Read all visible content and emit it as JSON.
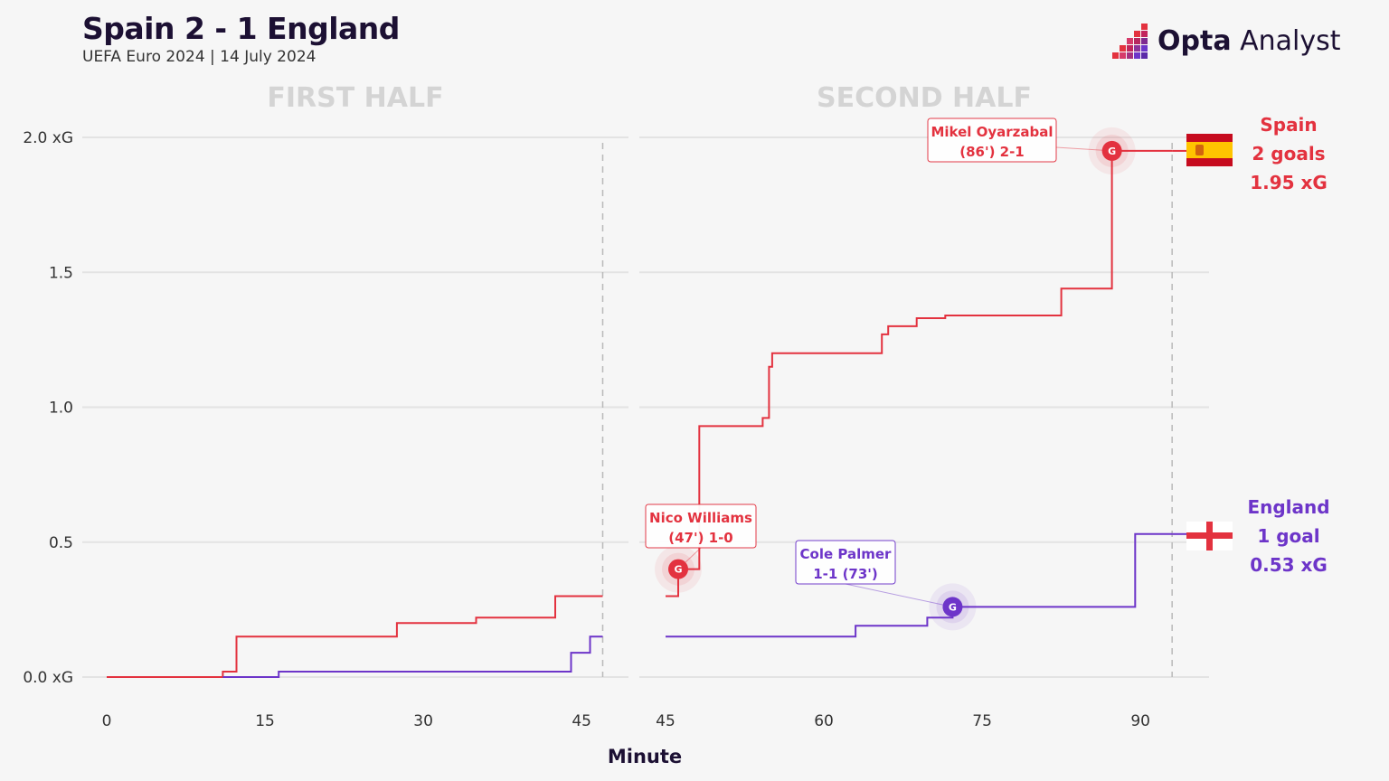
{
  "header": {
    "title": "Spain 2 - 1 England",
    "subtitle": "UEFA Euro 2024 | 14 July 2024"
  },
  "brand": {
    "name_bold": "Opta",
    "name_light": " Analyst"
  },
  "colors": {
    "spain": "#e3323f",
    "england": "#6d35c9",
    "grid": "#e3e3e3",
    "half_label": "#d4d4d4"
  },
  "chart_data": {
    "type": "line",
    "title": "Spain 2 - 1 England",
    "subtitle": "UEFA Euro 2024 | 14 July 2024",
    "xlabel": "Minute",
    "ylabel": "xG",
    "ylim": [
      0,
      2.0
    ],
    "y_ticks": [
      {
        "value": 0,
        "label": "0.0 xG"
      },
      {
        "value": 0.5,
        "label": "0.5"
      },
      {
        "value": 1.0,
        "label": "1.0"
      },
      {
        "value": 1.5,
        "label": "1.5"
      },
      {
        "value": 2.0,
        "label": "2.0 xG"
      }
    ],
    "panels": [
      {
        "label": "FIRST HALF",
        "xlim": [
          0,
          47
        ],
        "x_ticks": [
          0,
          15,
          30,
          45
        ],
        "end_marker": 47
      },
      {
        "label": "SECOND HALF",
        "xlim": [
          45,
          96
        ],
        "x_ticks": [
          45,
          60,
          75,
          90
        ],
        "end_marker": 93
      }
    ],
    "series": [
      {
        "name": "Spain",
        "color": "#e3323f",
        "first_half": [
          [
            0,
            0
          ],
          [
            11,
            0
          ],
          [
            11,
            0.02
          ],
          [
            12.3,
            0.02
          ],
          [
            12.3,
            0.15
          ],
          [
            27.5,
            0.15
          ],
          [
            27.5,
            0.2
          ],
          [
            35,
            0.2
          ],
          [
            35,
            0.22
          ],
          [
            42.5,
            0.22
          ],
          [
            42.5,
            0.3
          ],
          [
            47,
            0.3
          ]
        ],
        "second_half": [
          [
            45,
            0.3
          ],
          [
            46.2,
            0.3
          ],
          [
            46.2,
            0.4
          ],
          [
            48.2,
            0.4
          ],
          [
            48.2,
            0.93
          ],
          [
            54.2,
            0.93
          ],
          [
            54.2,
            0.96
          ],
          [
            54.8,
            0.96
          ],
          [
            54.8,
            1.15
          ],
          [
            55.1,
            1.15
          ],
          [
            55.1,
            1.2
          ],
          [
            65.5,
            1.2
          ],
          [
            65.5,
            1.27
          ],
          [
            66.1,
            1.27
          ],
          [
            66.1,
            1.3
          ],
          [
            68.8,
            1.3
          ],
          [
            68.8,
            1.33
          ],
          [
            71.5,
            1.33
          ],
          [
            71.5,
            1.34
          ],
          [
            82.5,
            1.34
          ],
          [
            82.5,
            1.44
          ],
          [
            87.3,
            1.44
          ],
          [
            87.3,
            1.95
          ],
          [
            93,
            1.95
          ]
        ]
      },
      {
        "name": "England",
        "color": "#6d35c9",
        "first_half": [
          [
            11,
            0
          ],
          [
            16.3,
            0
          ],
          [
            16.3,
            0.02
          ],
          [
            44,
            0.02
          ],
          [
            44,
            0.09
          ],
          [
            45.8,
            0.09
          ],
          [
            45.8,
            0.15
          ],
          [
            47,
            0.15
          ]
        ],
        "second_half": [
          [
            45,
            0.15
          ],
          [
            63,
            0.15
          ],
          [
            63,
            0.19
          ],
          [
            69.8,
            0.19
          ],
          [
            69.8,
            0.22
          ],
          [
            72.2,
            0.22
          ],
          [
            72.2,
            0.26
          ],
          [
            89.5,
            0.26
          ],
          [
            89.5,
            0.53
          ],
          [
            93,
            0.53
          ]
        ]
      }
    ],
    "goals": [
      {
        "team": "Spain",
        "minute": 46.2,
        "xg": 0.4,
        "symbol": "G",
        "line1": "Nico Williams",
        "line2": "(47') 1-0"
      },
      {
        "team": "England",
        "minute": 72.2,
        "xg": 0.26,
        "symbol": "G",
        "line1": "Cole Palmer",
        "line2": "1-1 (73')"
      },
      {
        "team": "Spain",
        "minute": 87.3,
        "xg": 1.95,
        "symbol": "G",
        "line1": "Mikel Oyarzabal",
        "line2": "(86') 2-1"
      }
    ],
    "team_summaries": [
      {
        "team": "Spain",
        "name": "Spain",
        "goals_label": "2 goals",
        "xg_label": "1.95 xG",
        "flag": "spain-flag"
      },
      {
        "team": "England",
        "name": "England",
        "goals_label": "1 goal",
        "xg_label": "0.53 xG",
        "flag": "england-flag"
      }
    ]
  }
}
